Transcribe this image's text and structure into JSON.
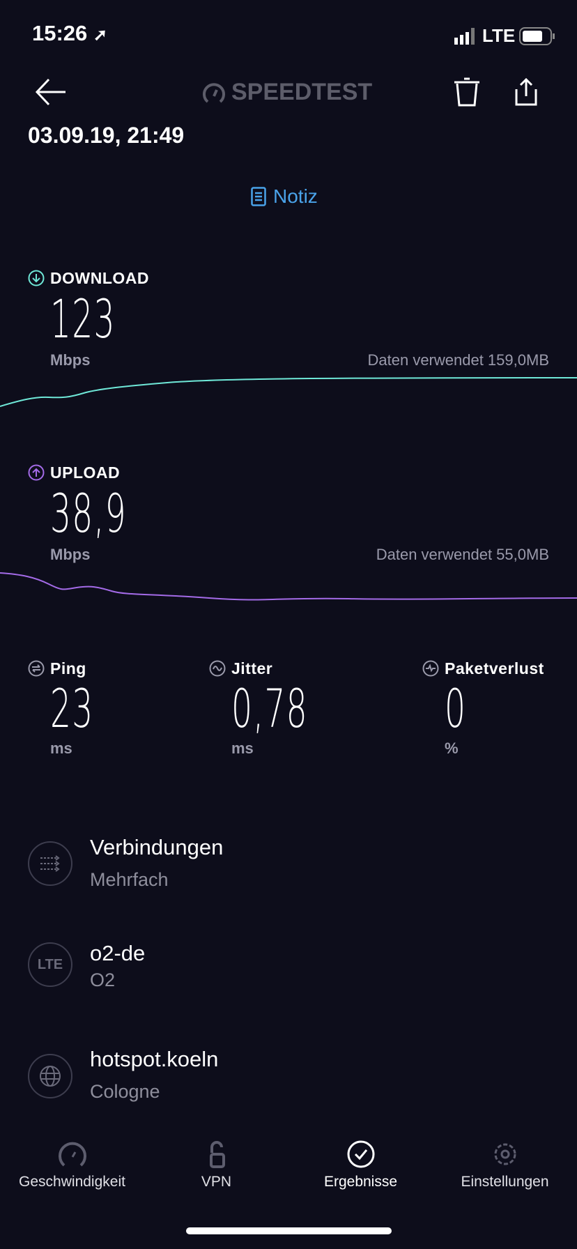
{
  "status": {
    "time": "15:26",
    "network": "LTE",
    "battery_level": 0.75
  },
  "header": {
    "logo": "SPEEDTEST",
    "date": "03.09.19, 21:49",
    "note_label": "Notiz"
  },
  "download": {
    "label": "DOWNLOAD",
    "value": "123",
    "unit": "Mbps",
    "data_used": "Daten verwendet 159,0MB",
    "color": "#6fe8d8"
  },
  "upload": {
    "label": "UPLOAD",
    "value": "38,9",
    "unit": "Mbps",
    "data_used": "Daten verwendet 55,0MB",
    "color": "#a46be8"
  },
  "metrics": [
    {
      "label": "Ping",
      "value": "23",
      "unit": "ms"
    },
    {
      "label": "Jitter",
      "value": "0,78",
      "unit": "ms"
    },
    {
      "label": "Paketverlust",
      "value": "0",
      "unit": "%"
    }
  ],
  "details": [
    {
      "title": "Verbindungen",
      "subtitle": "Mehrfach",
      "icon": "connections-icon"
    },
    {
      "title": "o2-de",
      "subtitle": "O2",
      "icon": "lte-icon",
      "badge": "LTE"
    },
    {
      "title": "hotspot.koeln",
      "subtitle": "Cologne",
      "icon": "globe-icon"
    }
  ],
  "tabs": [
    {
      "label": "Geschwindigkeit",
      "icon": "speedometer-icon"
    },
    {
      "label": "VPN",
      "icon": "unlock-icon"
    },
    {
      "label": "Ergebnisse",
      "icon": "check-circle-icon",
      "active": true
    },
    {
      "label": "Einstellungen",
      "icon": "gear-icon"
    }
  ]
}
